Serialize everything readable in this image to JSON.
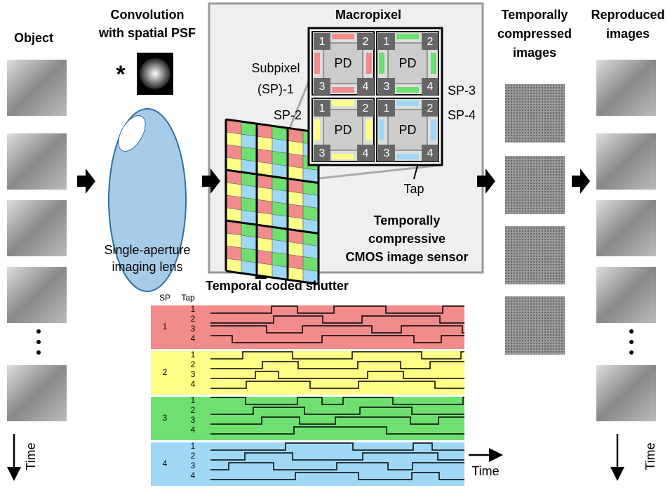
{
  "columns": {
    "object": "Object",
    "convolution": [
      "Convolution",
      "with spatial PSF"
    ],
    "convolution_symbol": "*",
    "lens": [
      "Single-aperture",
      "imaging lens"
    ],
    "compressed": [
      "Temporally",
      "compressed",
      "images"
    ],
    "reproduced": [
      "Reproduced",
      "images"
    ],
    "time_left": "Time",
    "time_right": "Time"
  },
  "sensor": {
    "macropixel_title": "Macropixel",
    "subpixels": [
      {
        "label": [
          "Subpixel",
          "(SP)-1"
        ],
        "pd": "PD",
        "taps": [
          "1",
          "2",
          "3",
          "4"
        ]
      },
      {
        "label": [
          "SP-3"
        ],
        "pd": "PD",
        "taps": [
          "1",
          "2",
          "3",
          "4"
        ]
      },
      {
        "label": [
          "SP-2"
        ],
        "pd": "PD",
        "taps": [
          "1",
          "2",
          "3",
          "4"
        ]
      },
      {
        "label": [
          "SP-4"
        ],
        "pd": "PD",
        "taps": [
          "1",
          "2",
          "3",
          "4"
        ]
      }
    ],
    "tap_label": "Tap",
    "caption": [
      "Temporally",
      "compressive",
      "CMOS image sensor"
    ]
  },
  "shutter": {
    "title": "Temporal coded shutter",
    "sp_header": "SP",
    "tap_header": "Tap",
    "groups": [
      {
        "sp": "1",
        "taps": [
          "1",
          "2",
          "3",
          "4"
        ]
      },
      {
        "sp": "2",
        "taps": [
          "1",
          "2",
          "3",
          "4"
        ]
      },
      {
        "sp": "3",
        "taps": [
          "1",
          "2",
          "3",
          "4"
        ]
      },
      {
        "sp": "4",
        "taps": [
          "1",
          "2",
          "3",
          "4"
        ]
      }
    ],
    "time": "Time"
  }
}
